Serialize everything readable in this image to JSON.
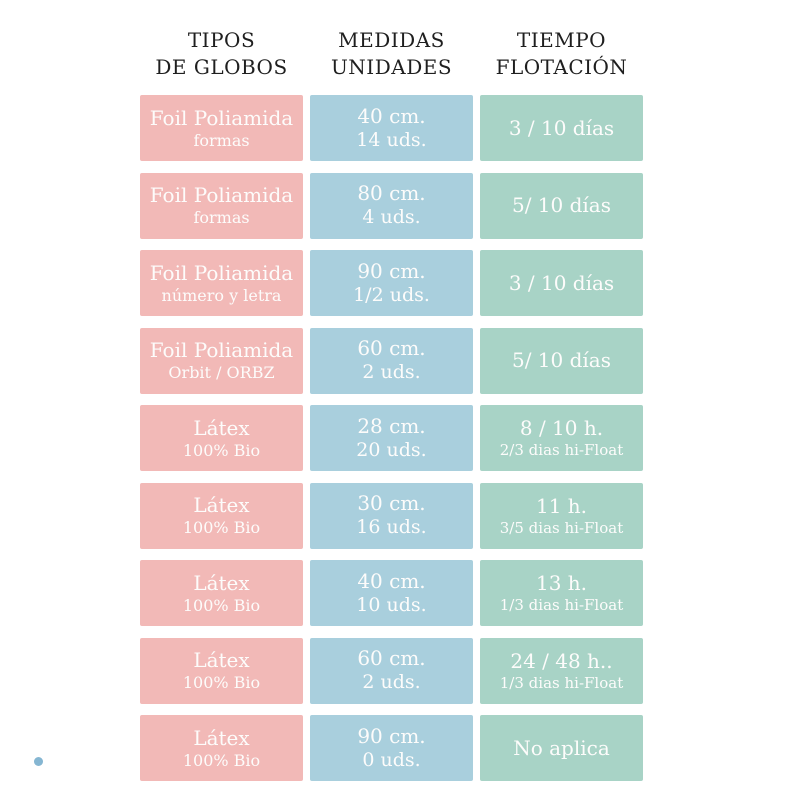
{
  "colors": {
    "type_cell": "#f2b9b7",
    "measure_cell": "#a9cfdd",
    "time_cell": "#a8d3c6",
    "cell_text": "#fdfcfb",
    "header_text": "#1f1f1f",
    "decorative_dot": "#85b6d2"
  },
  "headers": [
    {
      "line1": "TIPOS",
      "line2": "DE GLOBOS"
    },
    {
      "line1": "MEDIDAS",
      "line2": "UNIDADES"
    },
    {
      "line1": "TIEMPO",
      "line2": "FLOTACIÓN"
    }
  ],
  "table": {
    "rows": [
      {
        "type_main": "Foil Poliamida",
        "type_sub": "formas",
        "measure_size": "40 cm.",
        "measure_units": "14 uds.",
        "time_main": "3 / 10 días",
        "time_sub": ""
      },
      {
        "type_main": "Foil Poliamida",
        "type_sub": "formas",
        "measure_size": "80 cm.",
        "measure_units": "4 uds.",
        "time_main": "5/ 10 días",
        "time_sub": ""
      },
      {
        "type_main": "Foil Poliamida",
        "type_sub": "número y letra",
        "measure_size": "90 cm.",
        "measure_units": "1/2 uds.",
        "time_main": "3 / 10 días",
        "time_sub": ""
      },
      {
        "type_main": "Foil Poliamida",
        "type_sub": "Orbit / ORBZ",
        "measure_size": "60 cm.",
        "measure_units": "2 uds.",
        "time_main": "5/ 10 días",
        "time_sub": ""
      },
      {
        "type_main": "Látex",
        "type_sub": "100% Bio",
        "measure_size": "28 cm.",
        "measure_units": "20 uds.",
        "time_main": "8 / 10 h.",
        "time_sub": "2/3 dias hi-Float"
      },
      {
        "type_main": "Látex",
        "type_sub": "100% Bio",
        "measure_size": "30 cm.",
        "measure_units": "16 uds.",
        "time_main": "11 h.",
        "time_sub": "3/5 dias hi-Float"
      },
      {
        "type_main": "Látex",
        "type_sub": "100% Bio",
        "measure_size": "40 cm.",
        "measure_units": "10 uds.",
        "time_main": "13 h.",
        "time_sub": "1/3 dias hi-Float"
      },
      {
        "type_main": "Látex",
        "type_sub": "100% Bio",
        "measure_size": "60 cm.",
        "measure_units": "2 uds.",
        "time_main": "24 / 48 h..",
        "time_sub": "1/3 dias hi-Float"
      },
      {
        "type_main": "Látex",
        "type_sub": "100% Bio",
        "measure_size": "90 cm.",
        "measure_units": "0 uds.",
        "time_main": "No aplica",
        "time_sub": ""
      }
    ]
  },
  "chart_data": {
    "type": "table",
    "title": "",
    "columns": [
      "TIPOS DE GLOBOS",
      "MEDIDAS UNIDADES",
      "TIEMPO FLOTACIÓN"
    ],
    "rows": [
      [
        "Foil Poliamida — formas",
        "40 cm. / 14 uds.",
        "3 / 10 días"
      ],
      [
        "Foil Poliamida — formas",
        "80 cm. / 4 uds.",
        "5/ 10 días"
      ],
      [
        "Foil Poliamida — número y letra",
        "90 cm. / 1/2 uds.",
        "3 / 10 días"
      ],
      [
        "Foil Poliamida — Orbit / ORBZ",
        "60 cm. / 2 uds.",
        "5/ 10 días"
      ],
      [
        "Látex — 100% Bio",
        "28 cm. / 20 uds.",
        "8 / 10 h. — 2/3 dias hi-Float"
      ],
      [
        "Látex — 100% Bio",
        "30 cm. / 16 uds.",
        "11 h. — 3/5 dias hi-Float"
      ],
      [
        "Látex — 100% Bio",
        "40 cm. / 10 uds.",
        "13 h. — 1/3 dias hi-Float"
      ],
      [
        "Látex — 100% Bio",
        "60 cm. / 2 uds.",
        "24 / 48 h.. — 1/3 dias hi-Float"
      ],
      [
        "Látex — 100% Bio",
        "90 cm. / 0 uds.",
        "No aplica"
      ]
    ],
    "layout": {
      "columns_colors": [
        "#f2b9b7",
        "#a9cfdd",
        "#a8d3c6"
      ],
      "grid": false,
      "legend": "none"
    }
  }
}
